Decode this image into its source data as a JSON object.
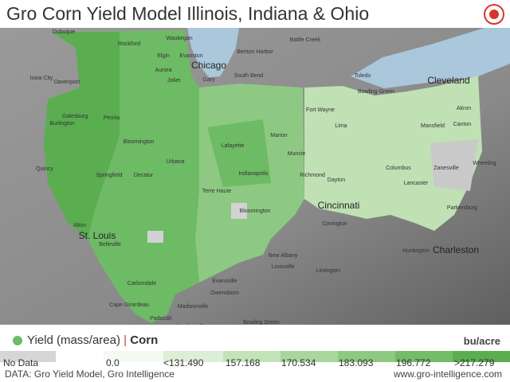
{
  "header": {
    "title": "Gro Corn Yield Model Illinois, Indiana & Ohio"
  },
  "map": {
    "cities": [
      "Dubuque",
      "Rockford",
      "Waukegan",
      "Elgin",
      "Evanston",
      "Chicago",
      "Aurora",
      "Joliet",
      "Gary",
      "South Bend",
      "Battle Creek",
      "Benton Harbor",
      "Toledo",
      "Bowling Green",
      "Cleveland",
      "Akron",
      "Davenport",
      "Iowa City",
      "Galesburg",
      "Burlington",
      "Peoria",
      "Bloomington",
      "Fort Wayne",
      "Lima",
      "Mansfield",
      "Canton",
      "Marion",
      "Lafayette",
      "Muncie",
      "Urbana",
      "Springfield",
      "Decatur",
      "Quincy",
      "Indianapolis",
      "Richmond",
      "Dayton",
      "Columbus",
      "Zanesville",
      "Wheeling",
      "Lancaster",
      "Terre Haute",
      "Parkersburg",
      "Bloomington",
      "Cincinnati",
      "Covington",
      "Alton",
      "St. Louis",
      "Belleville",
      "Huntington",
      "Charleston",
      "New Albany",
      "Louisville",
      "Lexington",
      "Evansville",
      "Carbondale",
      "Owensboro",
      "Cape Girardeau",
      "Madisonville",
      "Paducah",
      "Hopkinsville",
      "Bowling Green"
    ]
  },
  "legend": {
    "title": "Yield (mass/area)",
    "separator": "|",
    "crop": "Corn",
    "unit": "bu/acre",
    "bins": [
      {
        "label": "No Data",
        "color": "#d6d6d6"
      },
      {
        "label": "0.0",
        "color": "#f4f9f2"
      },
      {
        "label": "<131.490",
        "color": "#dcefd6"
      },
      {
        "label": "157.168",
        "color": "#c3e3b9"
      },
      {
        "label": "170.534",
        "color": "#a8d69c"
      },
      {
        "label": "183.093",
        "color": "#8ec982"
      },
      {
        "label": "196.772",
        "color": "#74bc68"
      },
      {
        "label": ">217.279",
        "color": "#5aae50"
      }
    ]
  },
  "footer": {
    "source": "DATA: Gro Yield Model, Gro Intelligence",
    "url": "www.gro-intelligence.com"
  }
}
